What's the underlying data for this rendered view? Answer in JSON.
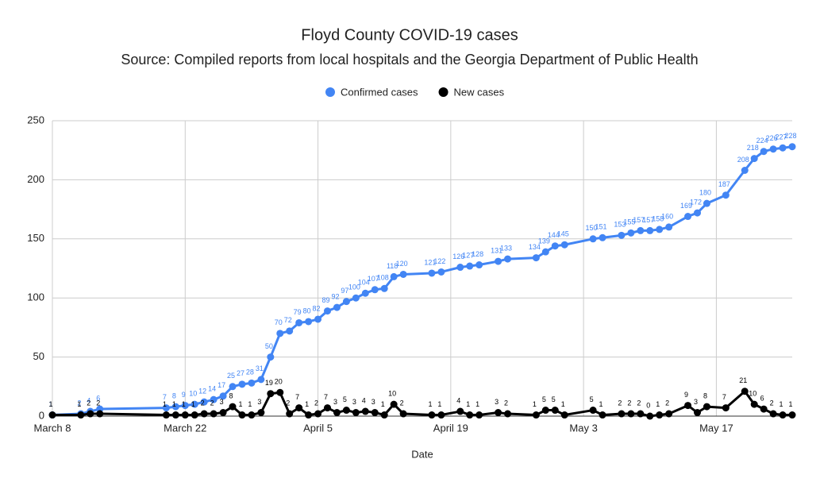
{
  "chart_data": {
    "type": "line",
    "title": "Floyd County COVID-19 cases",
    "subtitle": "Source: Compiled reports from local hospitals and the Georgia Department of Public Health",
    "x_label": "Date",
    "x": [
      "March 8",
      "March 11",
      "March 12",
      "March 13",
      "March 20",
      "March 21",
      "March 22",
      "March 23",
      "March 24",
      "March 25",
      "March 26",
      "March 27",
      "March 28",
      "March 29",
      "March 30",
      "March 31",
      "April 1",
      "April 2",
      "April 3",
      "April 4",
      "April 5",
      "April 6",
      "April 7",
      "April 8",
      "April 9",
      "April 10",
      "April 11",
      "April 12",
      "April 13",
      "April 14",
      "April 17",
      "April 18",
      "April 20",
      "April 21",
      "April 22",
      "April 24",
      "April 25",
      "April 28",
      "April 29",
      "April 30",
      "May 1",
      "May 4",
      "May 5",
      "May 7",
      "May 8",
      "May 9",
      "May 10",
      "May 11",
      "May 12",
      "May 14",
      "May 15",
      "May 16",
      "May 18",
      "May 20",
      "May 21",
      "May 22",
      "May 23",
      "May 24",
      "May 25"
    ],
    "series": [
      {
        "name": "Confirmed cases",
        "color": "#4285f4",
        "values": [
          1,
          2,
          4,
          6,
          7,
          8,
          9,
          10,
          12,
          14,
          17,
          25,
          27,
          28,
          31,
          50,
          70,
          72,
          79,
          80,
          82,
          89,
          92,
          97,
          100,
          104,
          107,
          108,
          118,
          120,
          121,
          122,
          126,
          127,
          128,
          131,
          133,
          134,
          139,
          144,
          145,
          150,
          151,
          153,
          155,
          157,
          157,
          158,
          160,
          169,
          172,
          180,
          187,
          208,
          218,
          224,
          226,
          227,
          228
        ]
      },
      {
        "name": "New cases",
        "color": "#000000",
        "values": [
          1,
          1,
          2,
          2,
          1,
          1,
          1,
          1,
          2,
          2,
          3,
          8,
          1,
          1,
          3,
          19,
          20,
          2,
          7,
          1,
          2,
          7,
          3,
          5,
          3,
          4,
          3,
          1,
          10,
          2,
          1,
          1,
          4,
          1,
          1,
          3,
          2,
          1,
          5,
          5,
          1,
          5,
          1,
          2,
          2,
          2,
          0,
          1,
          2,
          9,
          3,
          8,
          7,
          21,
          10,
          6,
          2,
          1,
          1
        ]
      }
    ],
    "xlim": [
      "March 8",
      "May 25"
    ],
    "xticks": [
      "March 8",
      "March 22",
      "April 5",
      "April 19",
      "May 3",
      "May 17"
    ],
    "ylim": [
      0,
      250
    ],
    "yticks": [
      0,
      50,
      100,
      150,
      200,
      250
    ],
    "grid": true,
    "legend": "top"
  }
}
